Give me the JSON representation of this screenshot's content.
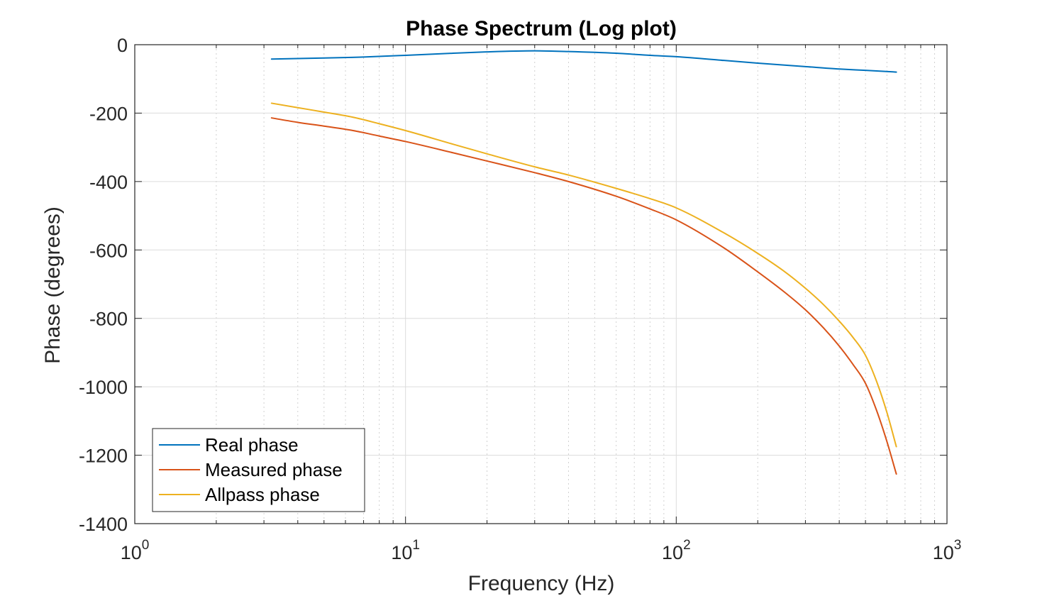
{
  "chart_data": {
    "type": "line",
    "title": "Phase Spectrum (Log plot)",
    "xlabel": "Frequency (Hz)",
    "ylabel": "Phase (degrees)",
    "xscale": "log",
    "xlim": [
      1,
      1000
    ],
    "ylim": [
      -1400,
      0
    ],
    "grid": true,
    "legend_position": "bottom-left",
    "xticks": [
      {
        "value": 1,
        "base": "10",
        "exp": "0"
      },
      {
        "value": 10,
        "base": "10",
        "exp": "1"
      },
      {
        "value": 100,
        "base": "10",
        "exp": "2"
      },
      {
        "value": 1000,
        "base": "10",
        "exp": "3"
      }
    ],
    "yticks": [
      {
        "value": 0,
        "label": "0"
      },
      {
        "value": -200,
        "label": "-200"
      },
      {
        "value": -400,
        "label": "-400"
      },
      {
        "value": -600,
        "label": "-600"
      },
      {
        "value": -800,
        "label": "-800"
      },
      {
        "value": -1000,
        "label": "-1000"
      },
      {
        "value": -1200,
        "label": "-1200"
      },
      {
        "value": -1400,
        "label": "-1400"
      }
    ],
    "series": [
      {
        "name": "Real phase",
        "color": "#0072BD",
        "x": [
          3.2,
          5,
          7,
          10,
          15,
          20,
          30,
          40,
          60,
          80,
          100,
          150,
          200,
          300,
          400,
          500,
          650
        ],
        "y": [
          -42,
          -39,
          -36,
          -31,
          -25,
          -21,
          -18,
          -20,
          -25,
          -31,
          -35,
          -46,
          -54,
          -64,
          -71,
          -75,
          -80
        ]
      },
      {
        "name": "Measured phase",
        "color": "#D95319",
        "x": [
          3.2,
          4,
          5,
          6.4,
          8,
          10,
          15,
          20,
          30,
          40,
          60,
          80,
          100,
          150,
          200,
          250,
          300,
          350,
          400,
          450,
          500,
          550,
          600,
          650
        ],
        "y": [
          -214,
          -227,
          -238,
          -251,
          -267,
          -283,
          -316,
          -340,
          -374,
          -400,
          -443,
          -480,
          -512,
          -594,
          -664,
          -722,
          -775,
          -828,
          -881,
          -935,
          -990,
          -1070,
          -1160,
          -1255
        ]
      },
      {
        "name": "Allpass phase",
        "color": "#EDB120",
        "x": [
          3.2,
          4,
          5,
          6.4,
          8,
          10,
          15,
          20,
          30,
          40,
          60,
          80,
          100,
          150,
          200,
          250,
          300,
          350,
          400,
          450,
          500,
          550,
          600,
          650
        ],
        "y": [
          -171,
          -184,
          -197,
          -212,
          -231,
          -251,
          -291,
          -319,
          -357,
          -381,
          -420,
          -450,
          -477,
          -550,
          -610,
          -662,
          -712,
          -760,
          -808,
          -856,
          -908,
          -985,
          -1075,
          -1175
        ]
      }
    ]
  }
}
